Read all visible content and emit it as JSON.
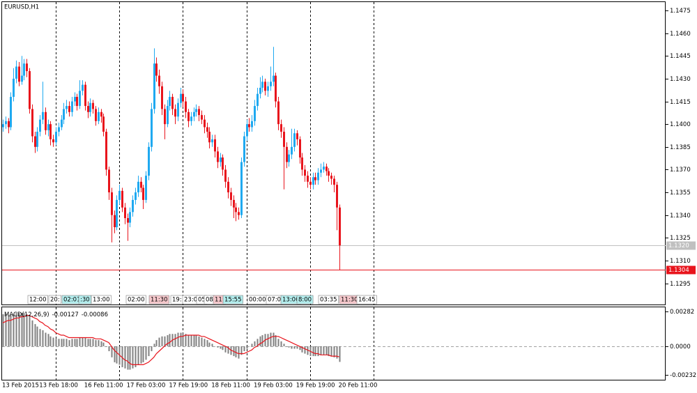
{
  "chart_data": [
    {
      "type": "candlestick",
      "title": "EURUSD,H1",
      "categories": [
        "13 Feb 2015",
        null,
        null,
        null,
        null,
        null,
        null,
        null,
        null,
        null,
        null,
        null,
        null,
        null,
        "13 Feb 18:00",
        null,
        null,
        null,
        null,
        null,
        null,
        null,
        null,
        null,
        null,
        null,
        null,
        null,
        null,
        null,
        null,
        "16 Feb 11:00",
        null,
        null,
        null,
        null,
        null,
        null,
        null,
        null,
        null,
        null,
        null,
        null,
        null,
        null,
        null,
        "17 Feb 03:00",
        null,
        null,
        null,
        null,
        null,
        null,
        null,
        null,
        null,
        null,
        null,
        null,
        null,
        null,
        null,
        "17 Feb 19:00",
        null,
        null,
        null,
        null,
        null,
        null,
        null,
        null,
        null,
        null,
        null,
        null,
        null,
        null,
        null,
        "18 Feb 11:00",
        null,
        null,
        null,
        null,
        null,
        null,
        null,
        null,
        null,
        null,
        null,
        null,
        null,
        null,
        null,
        "19 Feb 03:00",
        null,
        null,
        null,
        null,
        null,
        null,
        null,
        null,
        null,
        null,
        null,
        null,
        null,
        null,
        null,
        "19 Feb 19:00",
        null,
        null,
        null,
        null,
        null,
        null,
        null,
        null,
        null,
        null,
        null,
        null,
        null,
        null,
        null,
        "20 Feb 11:00"
      ],
      "open": [
        1.1398,
        1.14,
        1.1402,
        1.1398,
        1.1418,
        1.143,
        1.1438,
        1.1428,
        1.1432,
        1.144,
        1.1435,
        1.141,
        1.1392,
        1.1385,
        1.1395,
        1.1403,
        1.1408,
        1.1396,
        1.14,
        1.139,
        1.1388,
        1.1395,
        1.1398,
        1.1403,
        1.141,
        1.1412,
        1.1408,
        1.1415,
        1.1418,
        1.1412,
        1.1422,
        1.1426,
        1.1412,
        1.1408,
        1.1414,
        1.141,
        1.1402,
        1.1408,
        1.1405,
        1.1395,
        1.137,
        1.1355,
        1.134,
        1.1332,
        1.135,
        1.1356,
        1.1345,
        1.1338,
        1.1335,
        1.1342,
        1.135,
        1.1355,
        1.1362,
        1.1358,
        1.135,
        1.1366,
        1.1385,
        1.141,
        1.144,
        1.1432,
        1.1425,
        1.141,
        1.14,
        1.1412,
        1.1418,
        1.141,
        1.1405,
        1.1414,
        1.142,
        1.1415,
        1.1408,
        1.1402,
        1.1405,
        1.1408,
        1.141,
        1.1406,
        1.1403,
        1.1398,
        1.1395,
        1.1388,
        1.139,
        1.1382,
        1.1375,
        1.1378,
        1.137,
        1.1362,
        1.1355,
        1.135,
        1.1345,
        1.1342,
        1.134,
        1.1375,
        1.1392,
        1.14,
        1.1398,
        1.1402,
        1.1412,
        1.142,
        1.1424,
        1.1428,
        1.1422,
        1.1425,
        1.1428,
        1.1432,
        1.1415,
        1.14,
        1.1395,
        1.1385,
        1.1375,
        1.138,
        1.1385,
        1.1394,
        1.139,
        1.1378,
        1.137,
        1.1366,
        1.1362,
        1.136,
        1.1365,
        1.1363,
        1.1368,
        1.137,
        1.1372,
        1.1369,
        1.1366,
        1.1364,
        1.136,
        1.1345
      ],
      "high": [
        1.1403,
        1.1405,
        1.1404,
        1.1421,
        1.1437,
        1.1442,
        1.1441,
        1.1445,
        1.1443,
        1.1443,
        1.1437,
        1.1413,
        1.1395,
        1.1398,
        1.1406,
        1.1428,
        1.1411,
        1.1403,
        1.1402,
        1.1393,
        1.1398,
        1.1401,
        1.1406,
        1.1414,
        1.1416,
        1.1415,
        1.1418,
        1.1421,
        1.142,
        1.1429,
        1.1429,
        1.1428,
        1.1415,
        1.1417,
        1.1416,
        1.1412,
        1.1411,
        1.141,
        1.1407,
        1.1397,
        1.1372,
        1.1358,
        1.1343,
        1.1353,
        1.136,
        1.1358,
        1.1348,
        1.1341,
        1.1345,
        1.1353,
        1.1358,
        1.1366,
        1.1365,
        1.136,
        1.1369,
        1.1388,
        1.1414,
        1.145,
        1.1444,
        1.1436,
        1.1428,
        1.1413,
        1.1416,
        1.1422,
        1.142,
        1.1413,
        1.1417,
        1.1424,
        1.1423,
        1.1418,
        1.141,
        1.1408,
        1.1411,
        1.1413,
        1.1412,
        1.1409,
        1.1406,
        1.1401,
        1.1398,
        1.1393,
        1.1393,
        1.1385,
        1.1381,
        1.138,
        1.1373,
        1.1365,
        1.1358,
        1.1353,
        1.1348,
        1.1345,
        1.1378,
        1.1395,
        1.1403,
        1.1404,
        1.1406,
        1.1416,
        1.1424,
        1.1431,
        1.1432,
        1.143,
        1.1428,
        1.1438,
        1.1451,
        1.1434,
        1.1418,
        1.1403,
        1.1398,
        1.1388,
        1.1383,
        1.1397,
        1.1397,
        1.1396,
        1.1392,
        1.1381,
        1.1373,
        1.1369,
        1.1365,
        1.1368,
        1.1368,
        1.1371,
        1.1374,
        1.1375,
        1.1374,
        1.1371,
        1.1368,
        1.1366,
        1.1362,
        1.1347
      ],
      "low": [
        1.1395,
        1.1397,
        1.1394,
        1.1396,
        1.1415,
        1.1427,
        1.1425,
        1.1426,
        1.1429,
        1.1431,
        1.1407,
        1.1388,
        1.1381,
        1.1382,
        1.1392,
        1.14,
        1.1393,
        1.1392,
        1.1386,
        1.1385,
        1.1386,
        1.1392,
        1.1396,
        1.14,
        1.1407,
        1.1405,
        1.1405,
        1.1412,
        1.1409,
        1.141,
        1.1419,
        1.1409,
        1.1404,
        1.1405,
        1.1407,
        1.1399,
        1.14,
        1.1401,
        1.1392,
        1.1366,
        1.135,
        1.1322,
        1.1328,
        1.133,
        1.1347,
        1.1342,
        1.1334,
        1.1323,
        1.1332,
        1.1339,
        1.1347,
        1.1352,
        1.1355,
        1.1344,
        1.1348,
        1.1363,
        1.1382,
        1.1407,
        1.1428,
        1.142,
        1.1406,
        1.139,
        1.1398,
        1.1409,
        1.1406,
        1.14,
        1.1402,
        1.1411,
        1.1411,
        1.1404,
        1.1398,
        1.1399,
        1.1402,
        1.1405,
        1.1402,
        1.14,
        1.1394,
        1.1391,
        1.1384,
        1.1385,
        1.1378,
        1.1371,
        1.1372,
        1.1366,
        1.1358,
        1.1351,
        1.1346,
        1.1338,
        1.1336,
        1.1337,
        1.1338,
        1.1372,
        1.1389,
        1.1395,
        1.1395,
        1.1399,
        1.1409,
        1.1417,
        1.1421,
        1.1419,
        1.1418,
        1.1422,
        1.1425,
        1.1411,
        1.1396,
        1.1391,
        1.1357,
        1.1371,
        1.1372,
        1.1377,
        1.1382,
        1.1386,
        1.1374,
        1.1366,
        1.1362,
        1.1358,
        1.1357,
        1.1357,
        1.136,
        1.136,
        1.1365,
        1.1368,
        1.1366,
        1.1362,
        1.136,
        1.1355,
        1.133,
        1.1304
      ],
      "close": [
        1.14,
        1.1402,
        1.1398,
        1.1418,
        1.143,
        1.1438,
        1.1428,
        1.1432,
        1.144,
        1.1435,
        1.141,
        1.1392,
        1.1385,
        1.1395,
        1.1403,
        1.1408,
        1.1396,
        1.14,
        1.139,
        1.1388,
        1.1395,
        1.1398,
        1.1403,
        1.141,
        1.1412,
        1.1408,
        1.1415,
        1.1418,
        1.1412,
        1.1422,
        1.1426,
        1.1412,
        1.1408,
        1.1414,
        1.141,
        1.1402,
        1.1408,
        1.1405,
        1.1395,
        1.137,
        1.1355,
        1.134,
        1.1332,
        1.135,
        1.1356,
        1.1345,
        1.1338,
        1.1335,
        1.1342,
        1.135,
        1.1355,
        1.1362,
        1.1358,
        1.135,
        1.1366,
        1.1385,
        1.141,
        1.144,
        1.1432,
        1.1425,
        1.141,
        1.14,
        1.1412,
        1.1418,
        1.141,
        1.1405,
        1.1414,
        1.142,
        1.1415,
        1.1408,
        1.1402,
        1.1405,
        1.1408,
        1.141,
        1.1406,
        1.1403,
        1.1398,
        1.1395,
        1.1388,
        1.139,
        1.1382,
        1.1375,
        1.1378,
        1.137,
        1.1362,
        1.1355,
        1.135,
        1.1345,
        1.1342,
        1.134,
        1.1375,
        1.1392,
        1.14,
        1.1398,
        1.1402,
        1.1412,
        1.142,
        1.1424,
        1.1428,
        1.1422,
        1.1425,
        1.1428,
        1.1432,
        1.1415,
        1.14,
        1.1395,
        1.1385,
        1.1375,
        1.138,
        1.1385,
        1.1394,
        1.139,
        1.1378,
        1.137,
        1.1366,
        1.1362,
        1.136,
        1.1365,
        1.1363,
        1.1368,
        1.137,
        1.1372,
        1.1369,
        1.1366,
        1.1364,
        1.136,
        1.1345,
        1.132
      ],
      "up_color": "#1fa9f0",
      "down_color": "#e8141c",
      "ylim": [
        1.1281,
        1.1481
      ],
      "yticks": [
        1.1475,
        {
          "value": 1.146,
          "label": "1.1460"
        },
        1.1445,
        {
          "value": 1.143,
          "label": "1.1430"
        },
        1.1415,
        {
          "value": 1.14,
          "label": "1.1400"
        },
        1.1385,
        {
          "value": 1.137,
          "label": "1.1370"
        },
        1.1355,
        {
          "value": 1.134,
          "label": "1.1340"
        },
        1.1325,
        {
          "value": 1.131,
          "label": "1.1310"
        },
        1.1295
      ],
      "levels": [
        {
          "value": 1.132,
          "label": "1.1320",
          "color": "#c0c0c0"
        },
        {
          "value": 1.1304,
          "color": "#e8141c"
        }
      ],
      "events": [
        {
          "label": "12:00",
          "color": "#ffffff"
        },
        {
          "label": "20:",
          "color": "#ffffff"
        },
        {
          "label": "02:01",
          "color": "#b4eeee"
        },
        {
          "label": ":30",
          "color": "#b4eeee"
        },
        {
          "label": "13:00",
          "color": "#ffffff"
        },
        {
          "label": "02:00",
          "color": "#ffffff"
        },
        {
          "label": "11:30",
          "color": "#f6c8cc"
        },
        {
          "label": "19:",
          "color": "#ffffff"
        },
        {
          "label": "23:00",
          "color": "#ffffff"
        },
        {
          "label": "05",
          "color": "#ffffff"
        },
        {
          "label": "08",
          "color": "#ffffff"
        },
        {
          "label": "11:",
          "color": "#f6c8cc"
        },
        {
          "label": "15:55",
          "color": "#b4eeee"
        },
        {
          "label": "00:00",
          "color": "#ffffff"
        },
        {
          "label": "07:0",
          "color": "#ffffff"
        },
        {
          "label": "13:00",
          "color": "#b4eeee"
        },
        {
          "label": "8:00",
          "color": "#b4eeee"
        },
        {
          "label": "03:35",
          "color": "#ffffff"
        },
        {
          "label": "11:30",
          "color": "#f6c8cc"
        },
        {
          "label": "16:45",
          "color": "#ffffff"
        }
      ]
    },
    {
      "type": "macd",
      "title": "MACD(12,26,9)",
      "series": [
        {
          "style": "histogram",
          "color": "#808080",
          "values": [
            0.0026,
            0.0026,
            0.0025,
            0.0025,
            0.0026,
            0.0027,
            0.0027,
            0.0027,
            0.0027,
            0.0026,
            0.0024,
            0.0021,
            0.0018,
            0.0016,
            0.0014,
            0.0013,
            0.0011,
            0.001,
            0.0008,
            0.0007,
            0.0006,
            0.0006,
            0.0006,
            0.0006,
            0.0006,
            0.0005,
            0.0006,
            0.0006,
            0.0006,
            0.0007,
            0.0007,
            0.0007,
            0.0006,
            0.0006,
            0.0006,
            0.0005,
            0.0005,
            0.0004,
            0.0003,
            0.0,
            -0.0004,
            -0.0009,
            -0.0013,
            -0.0014,
            -0.0015,
            -0.0017,
            -0.0018,
            -0.0019,
            -0.0019,
            -0.0018,
            -0.0017,
            -0.0015,
            -0.0014,
            -0.0013,
            -0.0011,
            -0.0008,
            -0.0004,
            0.0002,
            0.0005,
            0.0007,
            0.0008,
            0.0008,
            0.0009,
            0.001,
            0.001,
            0.001,
            0.0011,
            0.0011,
            0.0011,
            0.001,
            0.0009,
            0.0009,
            0.0009,
            0.0009,
            0.0008,
            0.0007,
            0.0006,
            0.0005,
            0.0003,
            0.0002,
            0.0,
            -0.0001,
            -0.0002,
            -0.0003,
            -0.0005,
            -0.0006,
            -0.0007,
            -0.0008,
            -0.0009,
            -0.001,
            -0.0007,
            -0.0004,
            -0.0002,
            0.0,
            0.0002,
            0.0004,
            0.0006,
            0.0008,
            0.0009,
            0.001,
            0.001,
            0.0011,
            0.0011,
            0.0009,
            0.0006,
            0.0004,
            0.0002,
            0.0,
            -0.0001,
            -0.0002,
            -0.0002,
            -0.0002,
            -0.0003,
            -0.0005,
            -0.0006,
            -0.0007,
            -0.0008,
            -0.0008,
            -0.0008,
            -0.0008,
            -0.0007,
            -0.0007,
            -0.0007,
            -0.0008,
            -0.0008,
            -0.0009,
            -0.001,
            -0.00127
          ]
        },
        {
          "style": "line",
          "color": "#e8141c",
          "values": [
            0.0019,
            0.002,
            0.0021,
            0.0021,
            0.0022,
            0.0023,
            0.0023,
            0.0024,
            0.0024,
            0.0025,
            0.0025,
            0.0024,
            0.0023,
            0.0022,
            0.002,
            0.0019,
            0.0017,
            0.0016,
            0.0014,
            0.0013,
            0.0011,
            0.001,
            0.0009,
            0.0009,
            0.0008,
            0.0007,
            0.0007,
            0.0007,
            0.0007,
            0.0007,
            0.0007,
            0.0007,
            0.0007,
            0.0007,
            0.0007,
            0.0006,
            0.0006,
            0.0006,
            0.0005,
            0.0004,
            0.0003,
            0.0,
            -0.0003,
            -0.0005,
            -0.0007,
            -0.0009,
            -0.0011,
            -0.0012,
            -0.0014,
            -0.0015,
            -0.0015,
            -0.0015,
            -0.0015,
            -0.0015,
            -0.0014,
            -0.0013,
            -0.0011,
            -0.0009,
            -0.0006,
            -0.0004,
            -0.0002,
            0.0,
            0.0002,
            0.0003,
            0.0005,
            0.0006,
            0.0007,
            0.0008,
            0.0008,
            0.0009,
            0.0009,
            0.0009,
            0.0009,
            0.0009,
            0.0009,
            0.0008,
            0.0008,
            0.0007,
            0.0006,
            0.0005,
            0.0004,
            0.0003,
            0.0002,
            0.0001,
            0.0,
            -0.0001,
            -0.0003,
            -0.0004,
            -0.0005,
            -0.0006,
            -0.0006,
            -0.0006,
            -0.0005,
            -0.0004,
            -0.0003,
            -0.0001,
            0.0,
            0.0002,
            0.0003,
            0.0005,
            0.0006,
            0.0007,
            0.0008,
            0.0008,
            0.0008,
            0.0007,
            0.0006,
            0.0005,
            0.0004,
            0.0003,
            0.0002,
            0.0001,
            0.0,
            -0.0001,
            -0.0002,
            -0.0003,
            -0.0004,
            -0.0005,
            -0.0006,
            -0.0006,
            -0.0007,
            -0.0007,
            -0.0007,
            -0.0007,
            -0.0008,
            -0.0008,
            -0.0008,
            -0.00086
          ]
        }
      ],
      "ylim": [
        -0.00272,
        0.00322
      ],
      "yticks": [
        0.00282,
        {
          "value": 0,
          "label": "0.0000"
        },
        -0.00232
      ]
    }
  ]
}
